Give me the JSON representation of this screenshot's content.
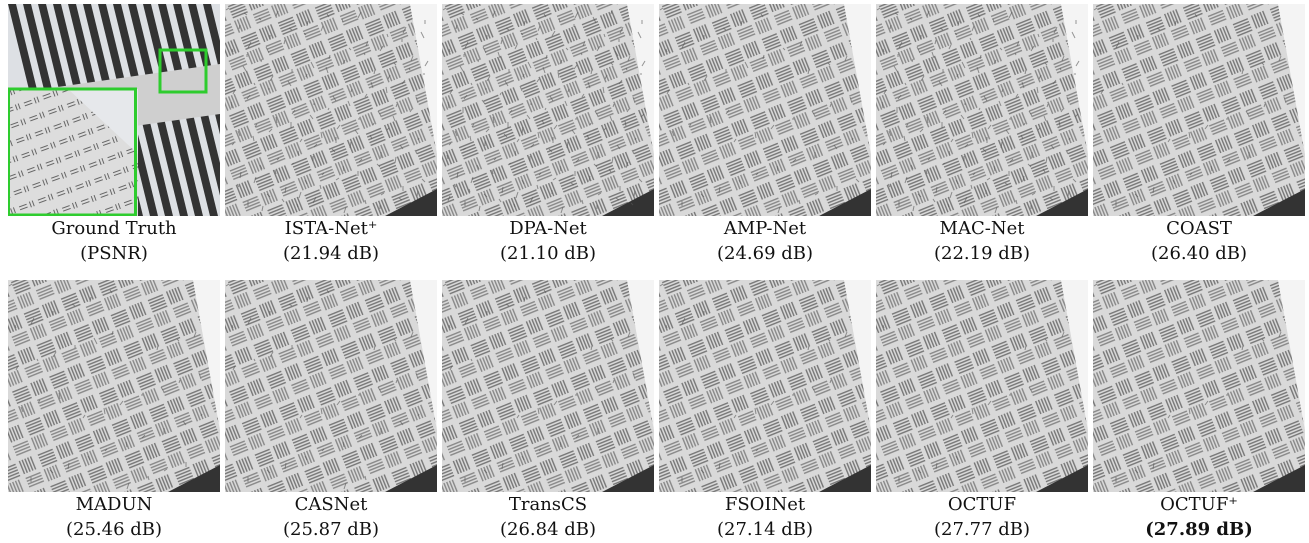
{
  "panels": [
    {
      "label": "Ground Truth",
      "caption": "(PSNR)"
    },
    {
      "label": "ISTA-Net⁺",
      "caption": "(21.94 dB)"
    },
    {
      "label": "DPA-Net",
      "caption": "(21.10 dB)"
    },
    {
      "label": "AMP-Net",
      "caption": "(24.69 dB)"
    },
    {
      "label": "MAC-Net",
      "caption": "(22.19 dB)"
    },
    {
      "label": "COAST",
      "caption": "(26.40 dB)"
    },
    {
      "label": "MADUN",
      "caption": "(25.46 dB)"
    },
    {
      "label": "CASNet",
      "caption": "(25.87 dB)"
    },
    {
      "label": "TransCS",
      "caption": "(26.84 dB)"
    },
    {
      "label": "FSOINet",
      "caption": "(27.14 dB)"
    },
    {
      "label": "OCTUF",
      "caption": "(27.77 dB)"
    },
    {
      "label": "OCTUF⁺",
      "caption": "(27.89 dB)"
    }
  ]
}
